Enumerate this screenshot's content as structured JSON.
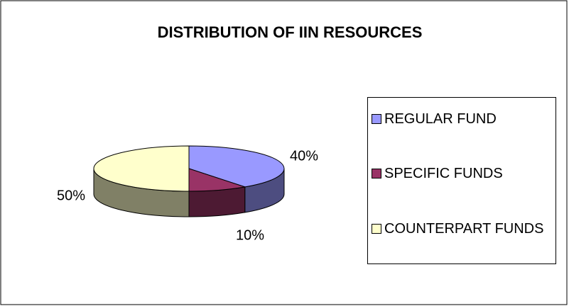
{
  "chart_data": {
    "type": "pie",
    "title": "DISTRIBUTION OF IIN RESOURCES",
    "categories": [
      "REGULAR FUND",
      "SPECIFIC FUNDS",
      "COUNTERPART FUNDS"
    ],
    "values": [
      40,
      10,
      50
    ],
    "value_labels": [
      "40%",
      "10%",
      "50%"
    ],
    "colors": [
      "#9999ff",
      "#993366",
      "#ffffcc"
    ],
    "legend": "right"
  }
}
